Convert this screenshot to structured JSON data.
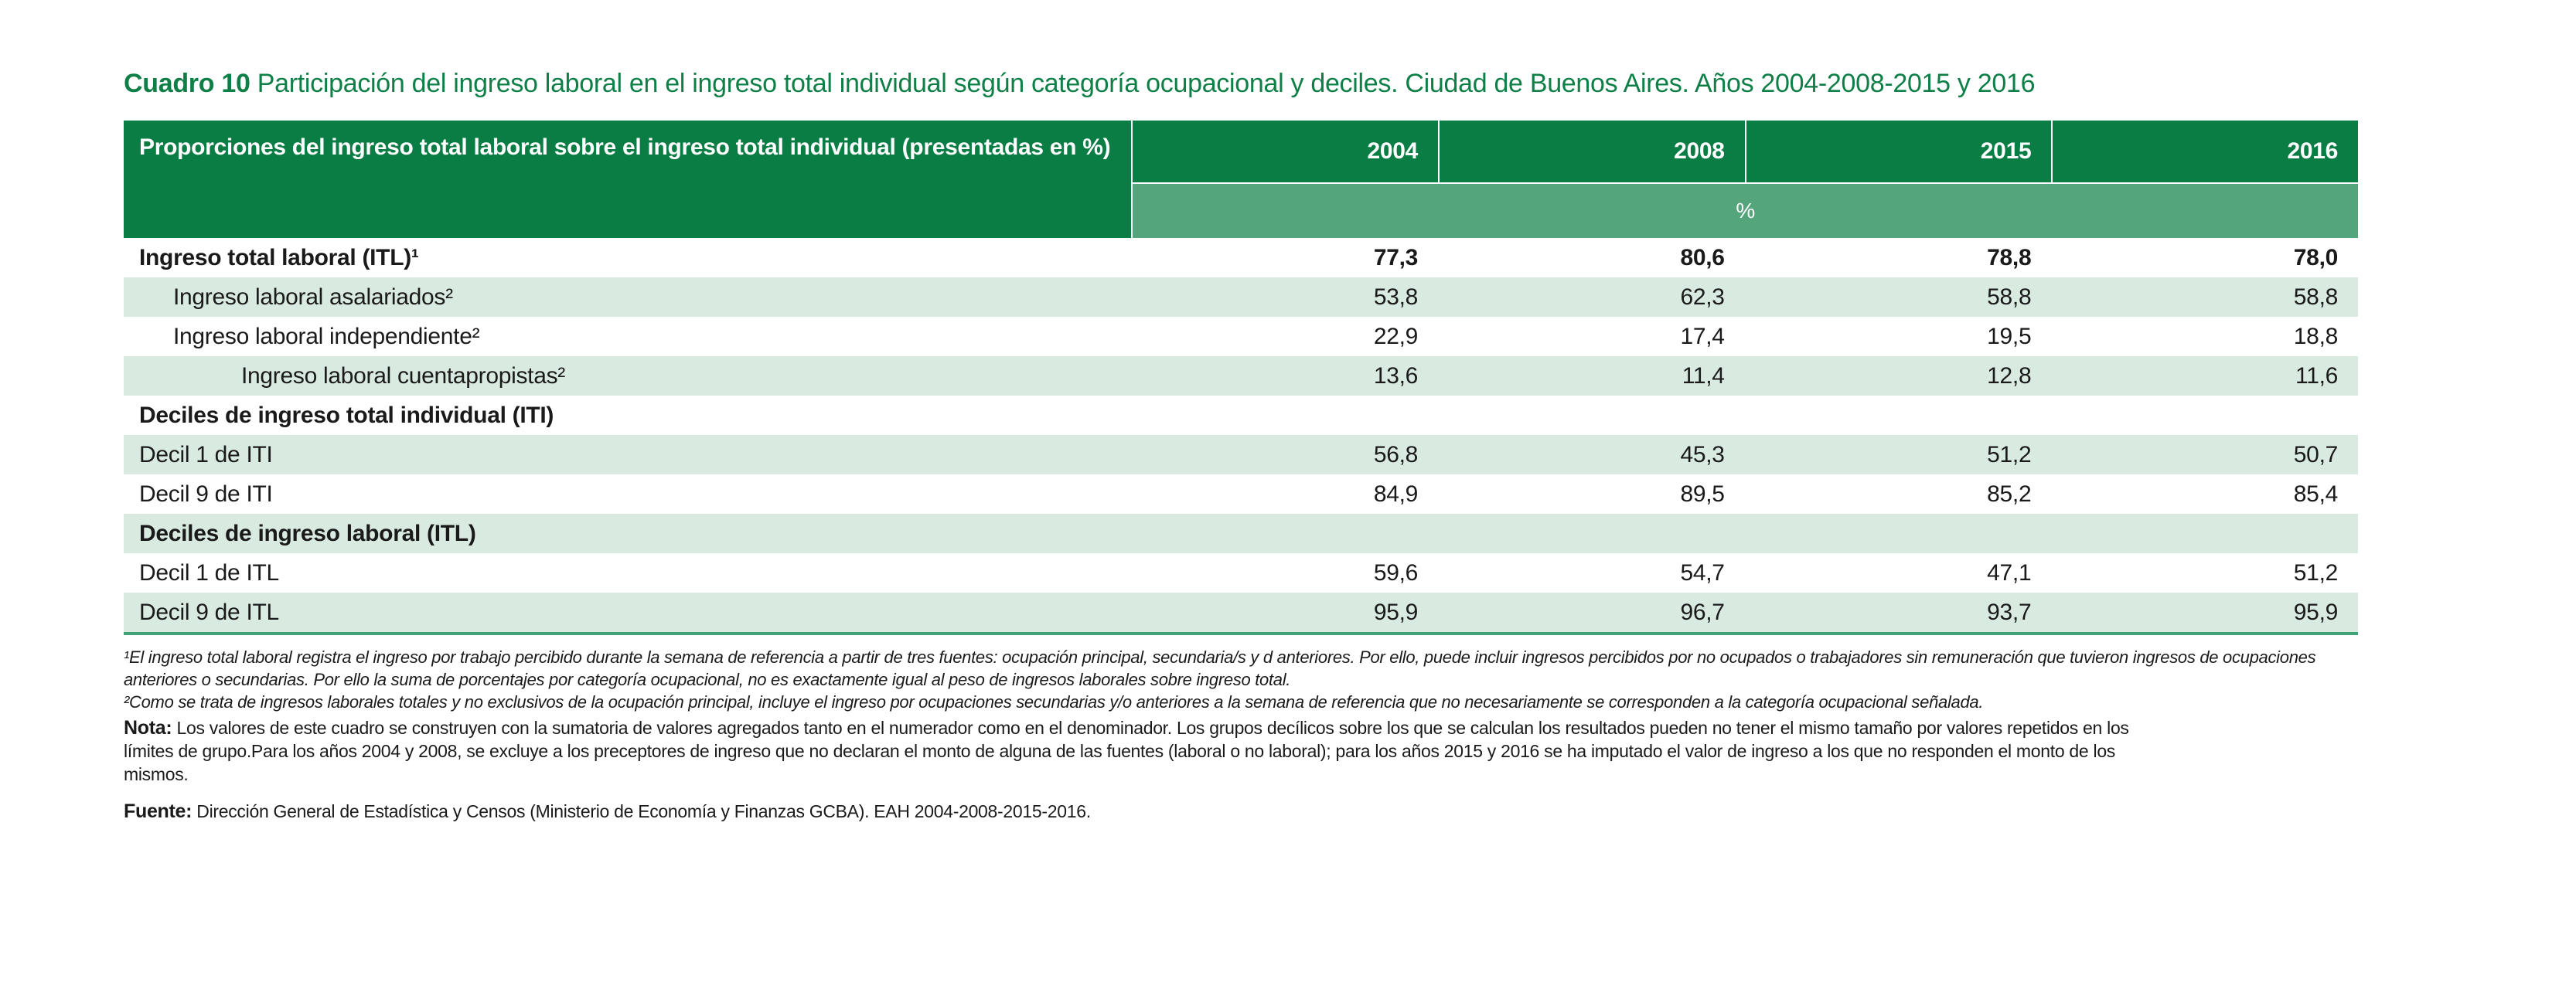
{
  "title": {
    "label": "Cuadro 10",
    "text": "Participación del ingreso laboral en el ingreso total individual según categoría ocupacional y deciles. Ciudad de Buenos Aires. Años 2004-2008-2015 y 2016"
  },
  "table": {
    "header": {
      "label": "Proporciones del ingreso total laboral sobre el ingreso total individual (presentadas en %)",
      "years": [
        "2004",
        "2008",
        "2015",
        "2016"
      ],
      "unit": "%"
    },
    "rows": [
      {
        "label": "Ingreso total laboral (ITL)¹",
        "indent": 0,
        "bold": true,
        "shaded": false,
        "values": [
          "77,3",
          "80,6",
          "78,8",
          "78,0"
        ]
      },
      {
        "label": "Ingreso laboral asalariados²",
        "indent": 1,
        "bold": false,
        "shaded": true,
        "values": [
          "53,8",
          "62,3",
          "58,8",
          "58,8"
        ]
      },
      {
        "label": "Ingreso laboral independiente²",
        "indent": 1,
        "bold": false,
        "shaded": false,
        "values": [
          "22,9",
          "17,4",
          "19,5",
          "18,8"
        ]
      },
      {
        "label": "Ingreso laboral cuentapropistas²",
        "indent": 2,
        "bold": false,
        "shaded": true,
        "values": [
          "13,6",
          "11,4",
          "12,8",
          "11,6"
        ]
      },
      {
        "label": "Deciles de ingreso total individual (ITI)",
        "indent": 0,
        "bold": true,
        "shaded": false,
        "values": [
          "",
          "",
          "",
          ""
        ]
      },
      {
        "label": "Decil 1 de ITI",
        "indent": 0,
        "bold": false,
        "shaded": true,
        "values": [
          "56,8",
          "45,3",
          "51,2",
          "50,7"
        ]
      },
      {
        "label": "Decil 9 de ITI",
        "indent": 0,
        "bold": false,
        "shaded": false,
        "values": [
          "84,9",
          "89,5",
          "85,2",
          "85,4"
        ]
      },
      {
        "label": "Deciles de ingreso laboral (ITL)",
        "indent": 0,
        "bold": true,
        "shaded": true,
        "values": [
          "",
          "",
          "",
          ""
        ]
      },
      {
        "label": "Decil 1 de ITL",
        "indent": 0,
        "bold": false,
        "shaded": false,
        "values": [
          "59,6",
          "54,7",
          "47,1",
          "51,2"
        ]
      },
      {
        "label": "Decil 9 de ITL",
        "indent": 0,
        "bold": false,
        "shaded": true,
        "values": [
          "95,9",
          "96,7",
          "93,7",
          "95,9"
        ]
      }
    ]
  },
  "footnotes": [
    "¹El ingreso total laboral registra el ingreso por trabajo percibido durante la semana de referencia a partir de tres fuentes: ocupación principal, secundaria/s y d anteriores. Por ello, puede incluir ingresos percibidos por no ocupados o trabajadores sin remuneración que tuvieron ingresos de ocupaciones anteriores o secundarias. Por ello la suma de porcentajes por categoría ocupacional, no es exactamente igual al peso de ingresos laborales sobre ingreso total.",
    "²Como se trata de ingresos laborales totales y no exclusivos de la ocupación principal, incluye el ingreso por ocupaciones secundarias y/o anteriores a la semana de referencia que no necesariamente se corresponden a la categoría ocupacional señalada."
  ],
  "note": {
    "label": "Nota:",
    "text": "Los valores de este cuadro se construyen con la sumatoria de valores agregados tanto en el numerador como en el denominador. Los grupos decílicos sobre los que se calculan los resultados pueden no tener el mismo tamaño por valores repetidos en los límites de grupo.Para los años 2004 y 2008, se excluye a los preceptores de ingreso que no declaran el monto de alguna de las fuentes (laboral o no laboral); para los años 2015 y 2016 se ha imputado el valor de ingreso a los que no responden el monto de los mismos."
  },
  "source": {
    "label": "Fuente:",
    "text": "Dirección General de Estadística y Censos (Ministerio de Economía y Finanzas GCBA). EAH 2004-2008-2015-2016."
  },
  "colors": {
    "title-green": "#0e7f46",
    "header-green": "#0a7d44",
    "unit-green": "#54a47c",
    "row-green": "#d9eae0",
    "border-green": "#3fa377",
    "text": "#1a1a1a"
  }
}
